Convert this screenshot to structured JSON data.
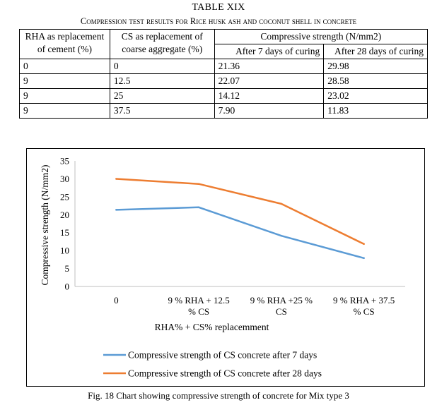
{
  "table": {
    "title": "TABLE XIX",
    "caption": "Compression test results for Rice husk ash and coconut shell in concrete",
    "headers": {
      "rha": "RHA as replacement of cement (%)",
      "cs": "CS as replacement of coarse aggregate (%)",
      "strength": "Compressive strength (N/mm2)",
      "day7": "After 7 days of curing",
      "day28": "After 28 days of curing"
    },
    "rows": [
      [
        "0",
        "0",
        "21.36",
        "29.98"
      ],
      [
        "9",
        "12.5",
        "22.07",
        "28.58"
      ],
      [
        "9",
        "25",
        "14.12",
        "23.02"
      ],
      [
        "9",
        "37.5",
        "7.90",
        "11.83"
      ]
    ]
  },
  "chart_data": {
    "type": "line",
    "categories": [
      "0",
      "9 % RHA + 12.5 % CS",
      "9 % RHA +25 % CS",
      "9 % RHA + 37.5 % CS"
    ],
    "category_lines": [
      [
        "0"
      ],
      [
        "9 % RHA + 12.5",
        "% CS"
      ],
      [
        "9 % RHA +25 %",
        "CS"
      ],
      [
        "9 % RHA + 37.5",
        "% CS"
      ]
    ],
    "series": [
      {
        "name": "Compressive strength of CS concrete after 7 days",
        "values": [
          21.36,
          22.07,
          14.12,
          7.9
        ],
        "color": "#5b9bd5"
      },
      {
        "name": "Compressive strength of CS concrete after 28 days",
        "values": [
          29.98,
          28.58,
          23.02,
          11.83
        ],
        "color": "#ed7d31"
      }
    ],
    "xlabel": "RHA% + CS% replacemment",
    "ylabel": "Compressive strength (N/mm2)",
    "ylim": [
      0,
      35
    ],
    "yticks": [
      "0",
      "5",
      "10",
      "15",
      "20",
      "25",
      "30",
      "35"
    ],
    "grid": false,
    "legend": "bottom"
  },
  "figure_caption": "Fig. 18 Chart showing compressive strength of concrete for Mix type 3"
}
